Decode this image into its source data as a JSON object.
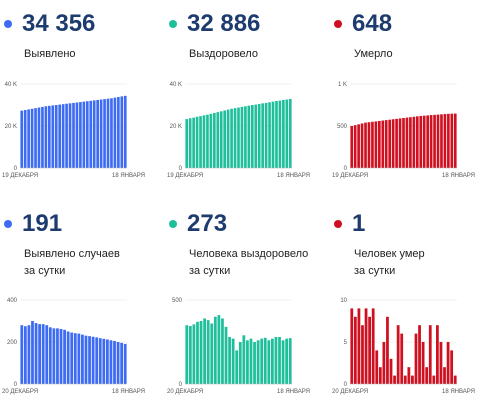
{
  "panels": [
    {
      "value": "34 356",
      "label_lines": [
        "Выявлено"
      ],
      "color": "#3d6bf2",
      "chart_data": {
        "type": "bar",
        "title": "",
        "xlabel": "",
        "ylabel": "",
        "ylim": [
          0,
          40000
        ],
        "y_ticks": [
          0,
          20000,
          40000
        ],
        "y_tick_labels": [
          "0",
          "20 K",
          "40 K"
        ],
        "x_tick_labels": [
          "19 ДЕКАБРЯ",
          "18 ЯНВАРЯ"
        ],
        "values": [
          27300,
          27600,
          27900,
          28200,
          28500,
          28800,
          29100,
          29400,
          29600,
          29800,
          30000,
          30200,
          30400,
          30600,
          30800,
          31000,
          31200,
          31400,
          31600,
          31800,
          32000,
          32200,
          32400,
          32600,
          32800,
          33000,
          33200,
          33500,
          33800,
          34100,
          34356
        ]
      }
    },
    {
      "value": "32 886",
      "label_lines": [
        "Выздоровело"
      ],
      "color": "#1fbf9c",
      "chart_data": {
        "type": "bar",
        "title": "",
        "xlabel": "",
        "ylabel": "",
        "ylim": [
          0,
          40000
        ],
        "y_ticks": [
          0,
          20000,
          40000
        ],
        "y_tick_labels": [
          "0",
          "20 K",
          "40 K"
        ],
        "x_tick_labels": [
          "19 ДЕКАБРЯ",
          "18 ЯНВАРЯ"
        ],
        "values": [
          23300,
          23700,
          24000,
          24400,
          24700,
          25100,
          25400,
          25800,
          26200,
          26600,
          27000,
          27400,
          27800,
          28200,
          28500,
          28800,
          29100,
          29400,
          29700,
          30000,
          30200,
          30500,
          30800,
          31000,
          31300,
          31600,
          31900,
          32100,
          32400,
          32600,
          32886
        ]
      }
    },
    {
      "value": "648",
      "label_lines": [
        "Умерло"
      ],
      "color": "#cf1020",
      "chart_data": {
        "type": "bar",
        "title": "",
        "xlabel": "",
        "ylabel": "",
        "ylim": [
          0,
          1000
        ],
        "y_ticks": [
          0,
          500,
          1000
        ],
        "y_tick_labels": [
          "0",
          "500",
          "1 K"
        ],
        "x_tick_labels": [
          "19 ДЕКАБРЯ",
          "18 ЯНВАРЯ"
        ],
        "values": [
          500,
          510,
          520,
          530,
          540,
          545,
          550,
          555,
          560,
          565,
          570,
          575,
          580,
          585,
          590,
          595,
          600,
          605,
          610,
          615,
          620,
          623,
          626,
          630,
          633,
          636,
          639,
          642,
          645,
          647,
          648
        ]
      }
    },
    {
      "value": "191",
      "label_lines": [
        "Выявлено случаев",
        "за сутки"
      ],
      "color": "#3d6bf2",
      "chart_data": {
        "type": "bar",
        "title": "",
        "xlabel": "",
        "ylabel": "",
        "ylim": [
          0,
          400
        ],
        "y_ticks": [
          0,
          200,
          400
        ],
        "y_tick_labels": [
          "0",
          "200",
          "400"
        ],
        "x_tick_labels": [
          "20 ДЕКАБРЯ",
          "18 ЯНВАРЯ"
        ],
        "values": [
          280,
          275,
          280,
          300,
          290,
          285,
          285,
          280,
          270,
          265,
          265,
          262,
          258,
          250,
          245,
          242,
          240,
          235,
          230,
          228,
          225,
          222,
          218,
          215,
          212,
          208,
          205,
          200,
          196,
          191
        ]
      }
    },
    {
      "value": "273",
      "label_lines": [
        "Человека выздоровело",
        "за сутки"
      ],
      "color": "#1fbf9c",
      "chart_data": {
        "type": "bar",
        "title": "",
        "xlabel": "",
        "ylabel": "",
        "ylim": [
          0,
          500
        ],
        "y_ticks": [
          0,
          500
        ],
        "y_tick_labels": [
          "0",
          "500"
        ],
        "x_tick_labels": [
          "20 ДЕКАБРЯ",
          "18 ЯНВАРЯ"
        ],
        "values": [
          350,
          345,
          355,
          370,
          375,
          390,
          380,
          360,
          400,
          410,
          390,
          340,
          280,
          270,
          200,
          250,
          290,
          260,
          270,
          250,
          260,
          270,
          275,
          260,
          270,
          280,
          280,
          260,
          270,
          273
        ]
      }
    },
    {
      "value": "1",
      "label_lines": [
        "Человек умер",
        "за сутки"
      ],
      "color": "#cf1020",
      "chart_data": {
        "type": "bar",
        "title": "",
        "xlabel": "",
        "ylabel": "",
        "ylim": [
          0,
          10
        ],
        "y_ticks": [
          0,
          5,
          10
        ],
        "y_tick_labels": [
          "0",
          "5",
          "10"
        ],
        "x_tick_labels": [
          "20 ДЕКАБРЯ",
          "18 ЯНВАРЯ"
        ],
        "values": [
          9,
          8,
          9,
          7,
          9,
          8,
          9,
          4,
          2,
          5,
          8,
          3,
          1,
          7,
          6,
          1,
          2,
          1,
          6,
          7,
          5,
          2,
          7,
          1,
          7,
          5,
          2,
          5,
          4,
          1
        ]
      }
    }
  ]
}
